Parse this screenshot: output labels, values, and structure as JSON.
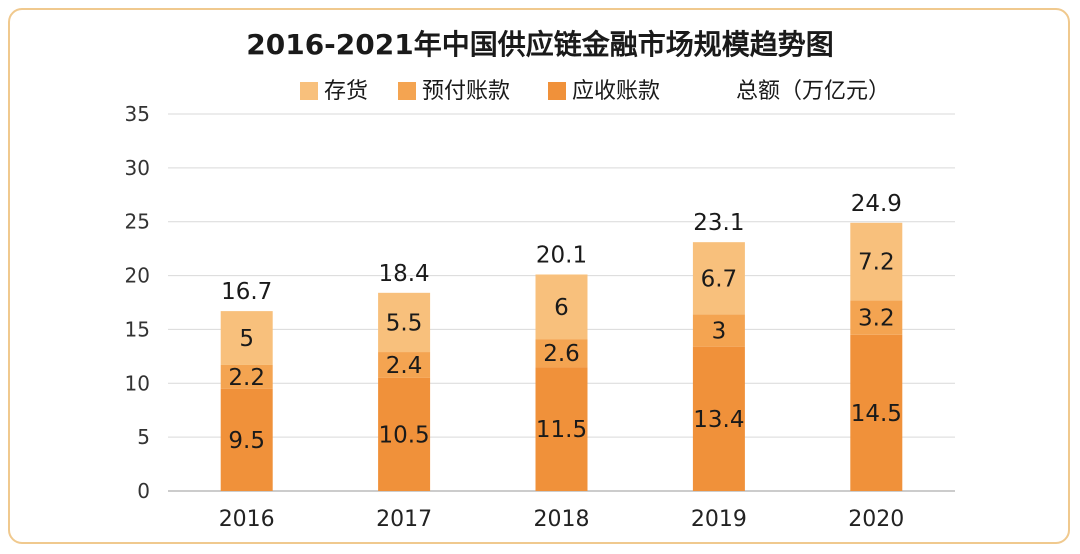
{
  "chart_data": {
    "type": "bar",
    "stacked": true,
    "title": "2016-2021年中国供应链金融市场规模趋势图",
    "unit_label": "总额（万亿元）",
    "categories": [
      "2016",
      "2017",
      "2018",
      "2019",
      "2020"
    ],
    "series": [
      {
        "name": "应收账款",
        "color": "#f0913a",
        "values": [
          9.5,
          10.5,
          11.5,
          13.4,
          14.5
        ]
      },
      {
        "name": "预付账款",
        "color": "#f4a451",
        "values": [
          2.2,
          2.4,
          2.6,
          3,
          3.2
        ]
      },
      {
        "name": "存货",
        "color": "#f8c07c",
        "values": [
          5,
          5.5,
          6,
          6.7,
          7.2
        ]
      }
    ],
    "legend_order": [
      "存货",
      "预付账款",
      "应收账款"
    ],
    "totals": [
      "16.7",
      "18.4",
      "20.1",
      "23.1",
      "24.9"
    ],
    "segment_labels": [
      [
        "9.5",
        "10.5",
        "11.5",
        "13.4",
        "14.5"
      ],
      [
        "2.2",
        "2.4",
        "2.6",
        "3",
        "3.2"
      ],
      [
        "5",
        "5.5",
        "6",
        "6.7",
        "7.2"
      ]
    ],
    "ylim": [
      0,
      35
    ],
    "yticks": [
      0,
      5,
      10,
      15,
      20,
      25,
      30,
      35
    ],
    "grid": true,
    "legend_position": "top"
  },
  "colors": {
    "frame_border": "#f0c98e",
    "grid": "#d9d9d9",
    "axis": "#999999"
  }
}
